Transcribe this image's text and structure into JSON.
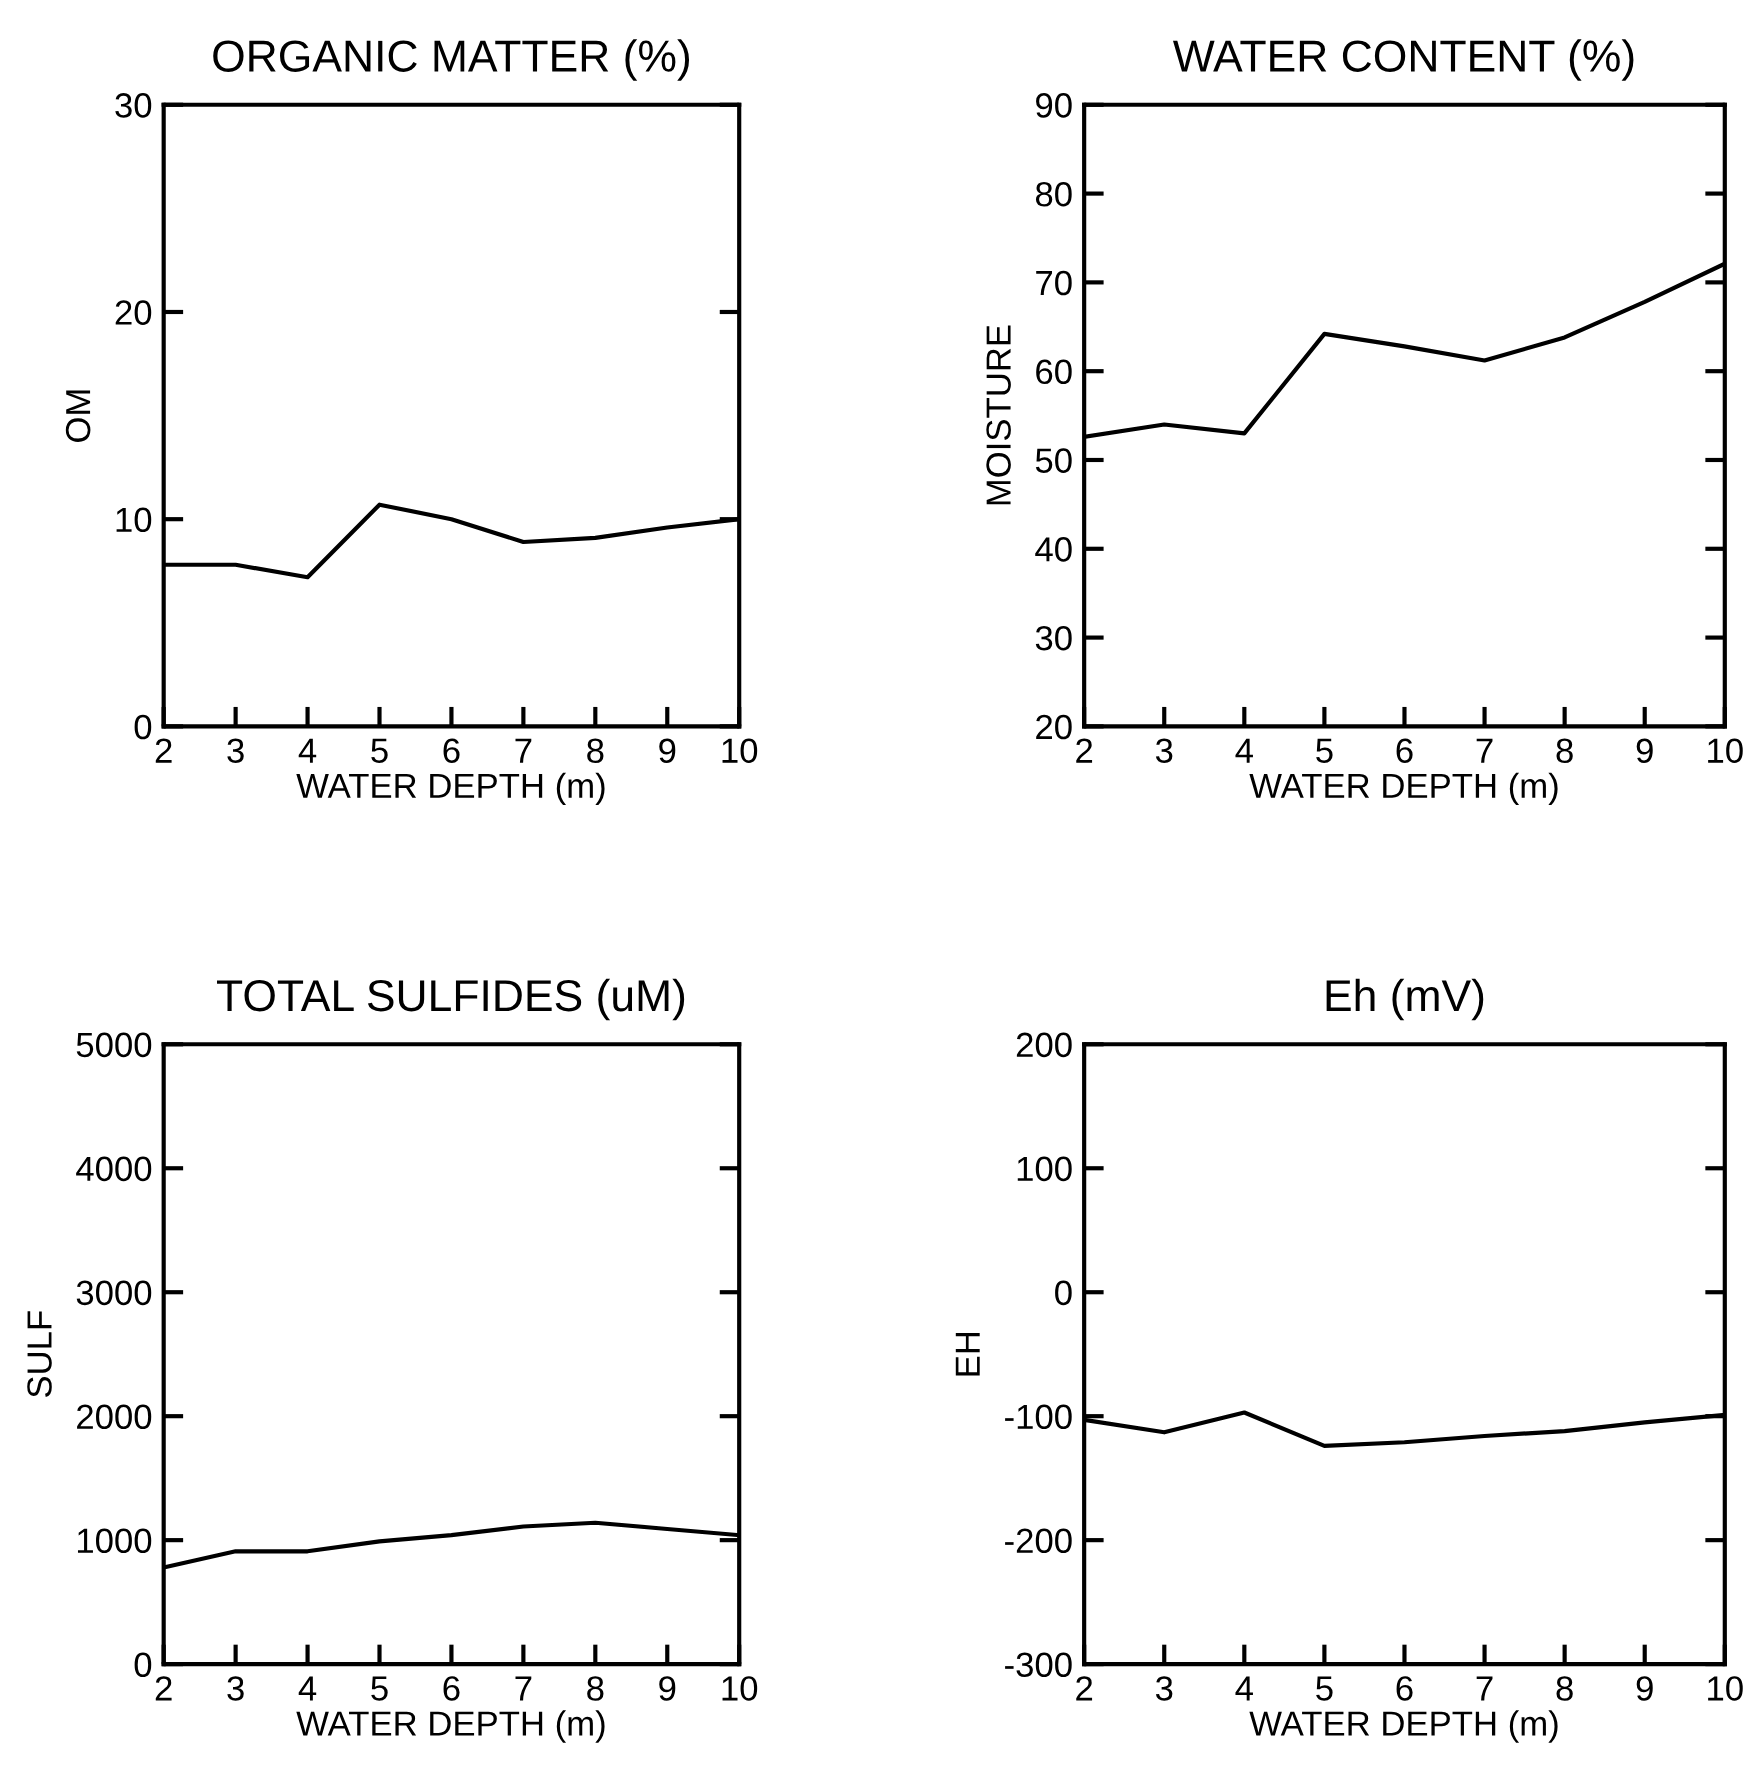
{
  "chart_data": [
    {
      "type": "line",
      "title": "ORGANIC MATTER (%)",
      "xlabel": "WATER DEPTH (m)",
      "ylabel": "OM",
      "x": [
        2,
        3,
        4,
        5,
        6,
        7,
        8,
        9,
        10
      ],
      "xlim": [
        2,
        10
      ],
      "xticks": [
        2,
        3,
        4,
        5,
        6,
        7,
        8,
        9,
        10
      ],
      "ylim": [
        0,
        30
      ],
      "yticks": [
        0,
        10,
        20,
        30
      ],
      "series": [
        {
          "color": "#000000",
          "values": [
            7.8,
            7.8,
            7.2,
            10.7,
            10.0,
            8.9,
            9.1,
            9.6,
            10.0
          ]
        }
      ]
    },
    {
      "type": "line",
      "title": "WATER CONTENT (%)",
      "xlabel": "WATER DEPTH (m)",
      "ylabel": "MOISTURE",
      "x": [
        2,
        3,
        4,
        5,
        6,
        7,
        8,
        9,
        10
      ],
      "xlim": [
        2,
        10
      ],
      "xticks": [
        2,
        3,
        4,
        5,
        6,
        7,
        8,
        9,
        10
      ],
      "ylim": [
        20,
        90
      ],
      "yticks": [
        20,
        30,
        40,
        50,
        60,
        70,
        80,
        90
      ],
      "series": [
        {
          "color": "#000000",
          "values": [
            52.6,
            54.0,
            53.0,
            64.2,
            62.8,
            61.2,
            63.8,
            67.8,
            72.1
          ]
        }
      ]
    },
    {
      "type": "line",
      "title": "TOTAL SULFIDES (uM)",
      "xlabel": "WATER DEPTH (m)",
      "ylabel": "SULF",
      "x": [
        2,
        3,
        4,
        5,
        6,
        7,
        8,
        9,
        10
      ],
      "xlim": [
        2,
        10
      ],
      "xticks": [
        2,
        3,
        4,
        5,
        6,
        7,
        8,
        9,
        10
      ],
      "ylim": [
        0,
        5000
      ],
      "yticks": [
        0,
        1000,
        2000,
        3000,
        4000,
        5000
      ],
      "series": [
        {
          "color": "#000000",
          "values": [
            780,
            910,
            910,
            990,
            1040,
            1110,
            1140,
            1090,
            1040
          ]
        }
      ]
    },
    {
      "type": "line",
      "title": "Eh (mV)",
      "xlabel": "WATER DEPTH (m)",
      "ylabel": "EH",
      "x": [
        2,
        3,
        4,
        5,
        6,
        7,
        8,
        9,
        10
      ],
      "xlim": [
        2,
        10
      ],
      "xticks": [
        2,
        3,
        4,
        5,
        6,
        7,
        8,
        9,
        10
      ],
      "ylim": [
        -300,
        200
      ],
      "yticks": [
        -300,
        -200,
        -100,
        0,
        100,
        200
      ],
      "series": [
        {
          "color": "#000000",
          "values": [
            -103,
            -113,
            -97,
            -124,
            -121,
            -116,
            -112,
            -105,
            -99
          ]
        }
      ]
    }
  ]
}
